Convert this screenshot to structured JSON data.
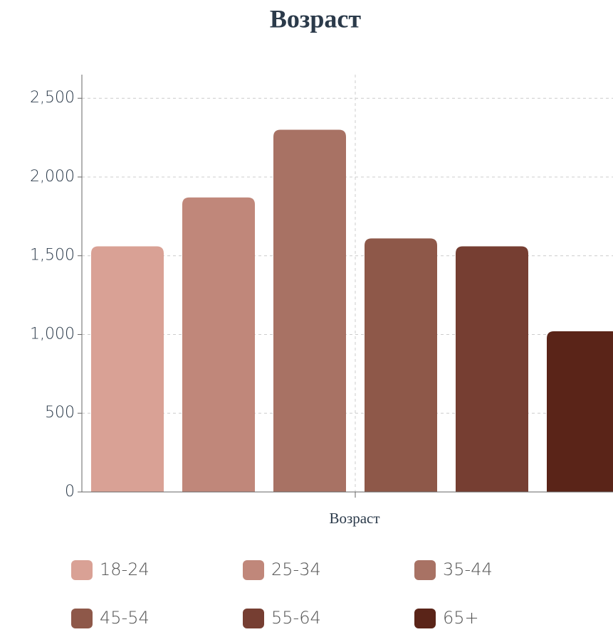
{
  "chart_data": {
    "type": "bar",
    "title": "Возраст",
    "x_label": "Возраст",
    "categories": [
      "Возраст"
    ],
    "series": [
      {
        "name": "18-24",
        "color": "#d9a195",
        "values": [
          1560
        ]
      },
      {
        "name": "25-34",
        "color": "#c0877a",
        "values": [
          1870
        ]
      },
      {
        "name": "35-44",
        "color": "#a87264",
        "values": [
          2300
        ]
      },
      {
        "name": "45-54",
        "color": "#8e5849",
        "values": [
          1610
        ]
      },
      {
        "name": "55-64",
        "color": "#763e32",
        "values": [
          1560
        ]
      },
      {
        "name": "65+",
        "color": "#5a2418",
        "values": [
          1020
        ]
      }
    ],
    "ylim": [
      0,
      2650
    ],
    "yticks": [
      0,
      500,
      {
        "value": 1000,
        "label": "1,000"
      },
      {
        "value": 1500,
        "label": "1,500"
      },
      {
        "value": 2000,
        "label": "2,000"
      },
      {
        "value": 2500,
        "label": "2,500"
      }
    ],
    "grid": true,
    "legend": "bottom"
  }
}
